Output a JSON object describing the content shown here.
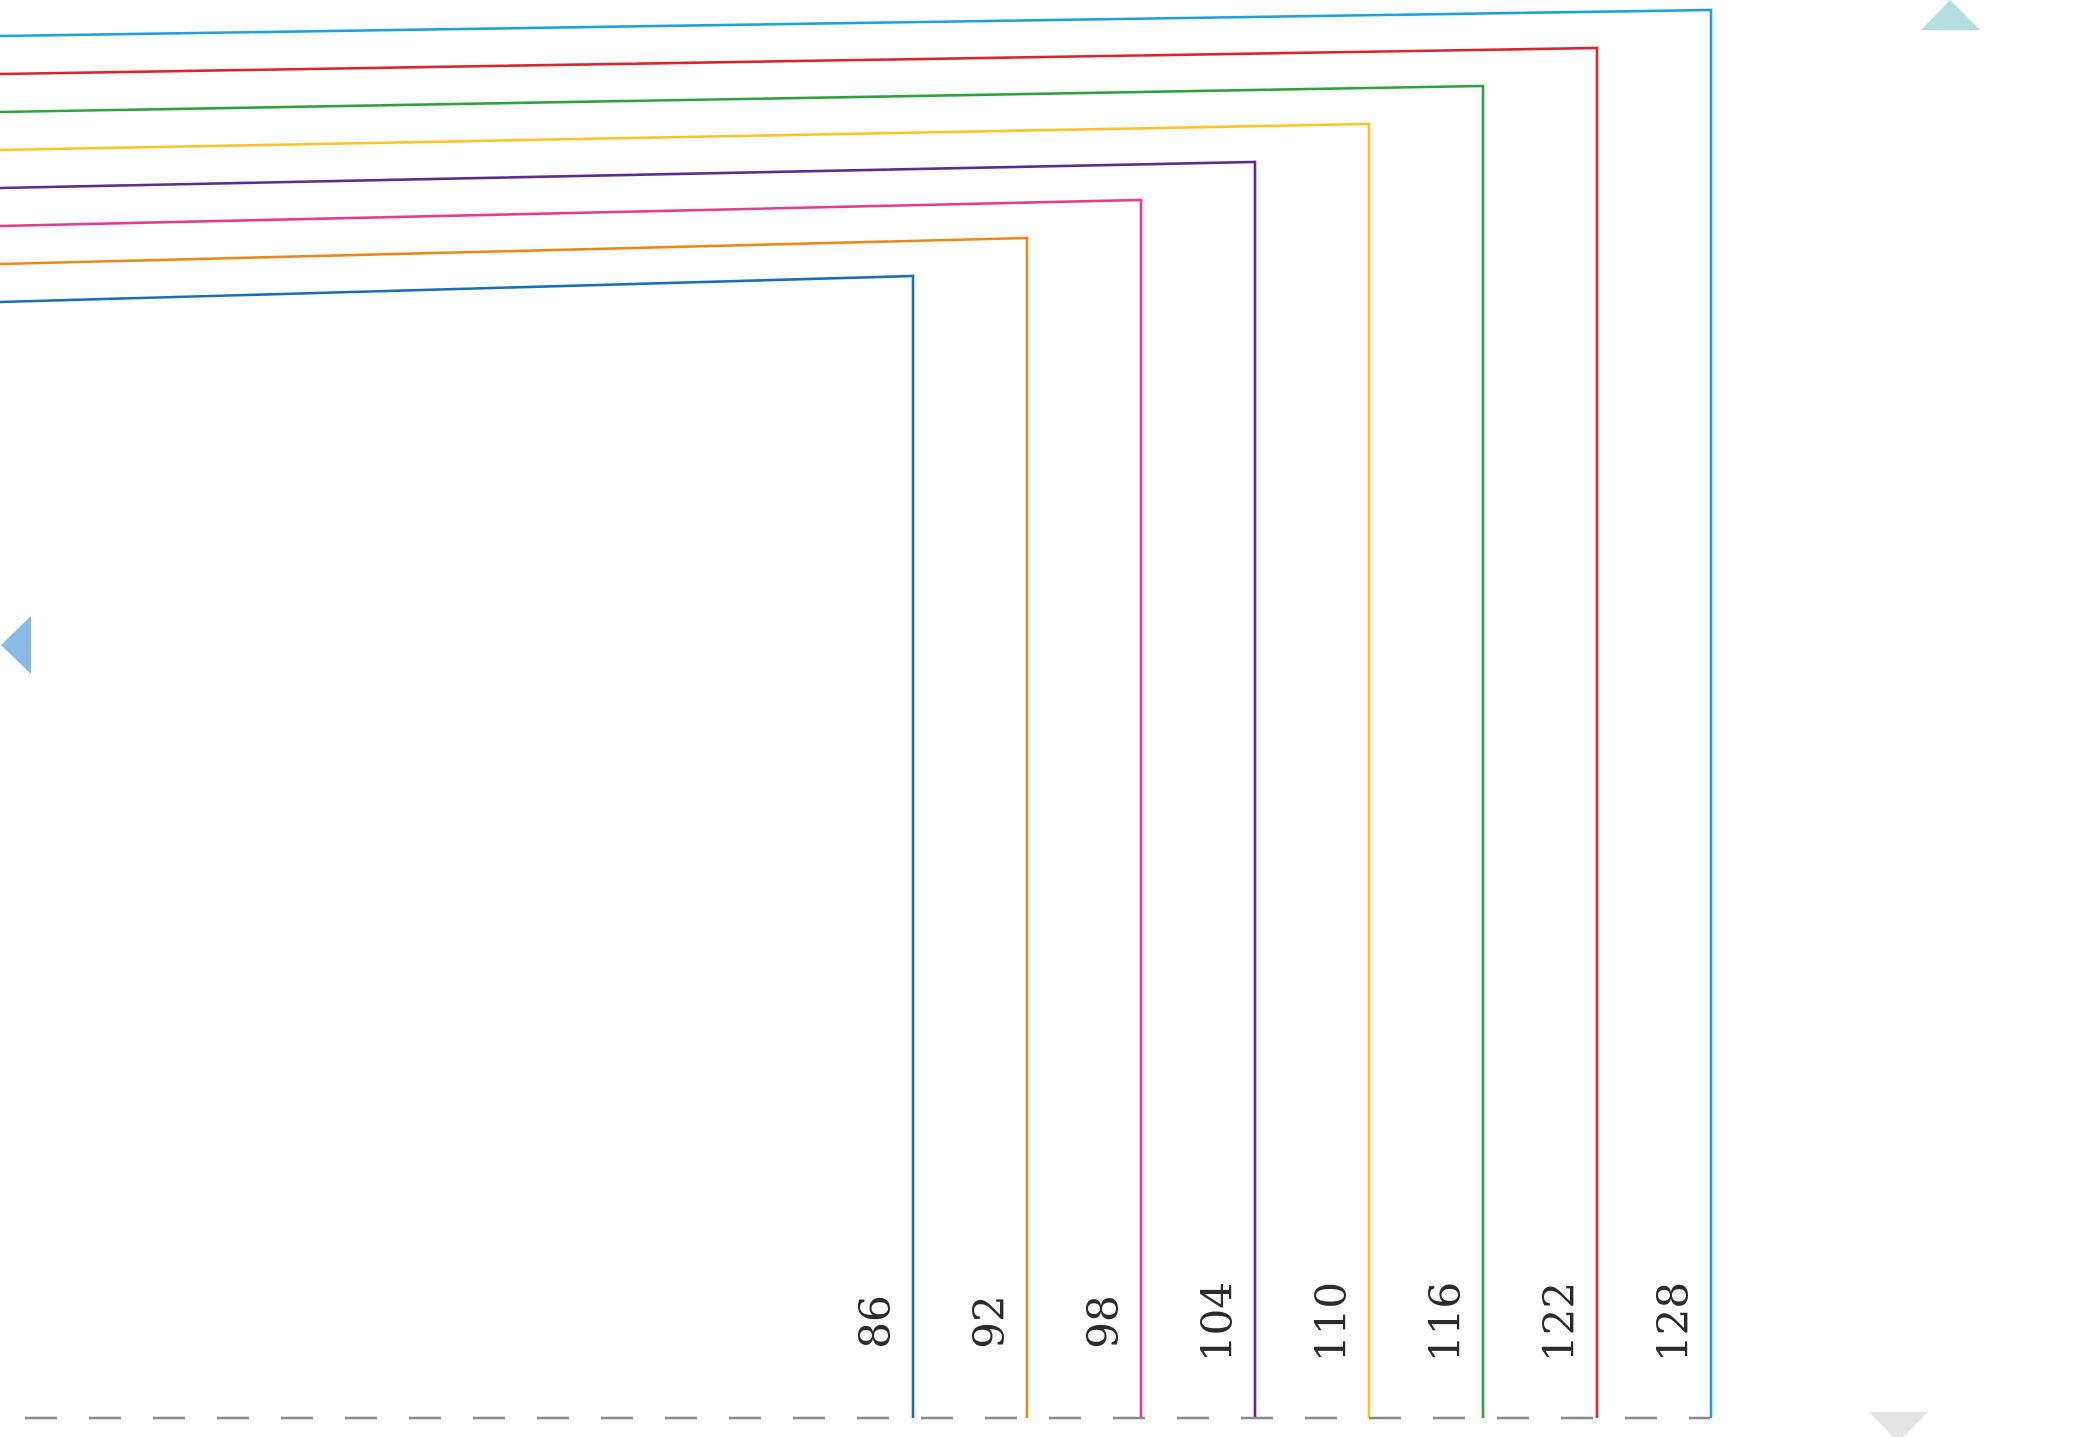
{
  "diagram": {
    "brackets": [
      {
        "label": "86",
        "color": "#1a6fb8"
      },
      {
        "label": "92",
        "color": "#e8891a"
      },
      {
        "label": "98",
        "color": "#e23e8d"
      },
      {
        "label": "104",
        "color": "#5b2d8e"
      },
      {
        "label": "110",
        "color": "#fcc42a"
      },
      {
        "label": "116",
        "color": "#2fa23f"
      },
      {
        "label": "122",
        "color": "#d7262e"
      },
      {
        "label": "128",
        "color": "#1fa2dc"
      }
    ],
    "baseline_color": "#8a8a8a"
  },
  "controls": {
    "scroll_up": {
      "icon": "triangle-up-icon",
      "color": "#b4dfe2"
    },
    "scroll_left": {
      "icon": "triangle-left-icon",
      "color": "#88bce6"
    },
    "scroll_down": {
      "icon": "triangle-down-icon",
      "color": "#e4e4e4"
    }
  }
}
